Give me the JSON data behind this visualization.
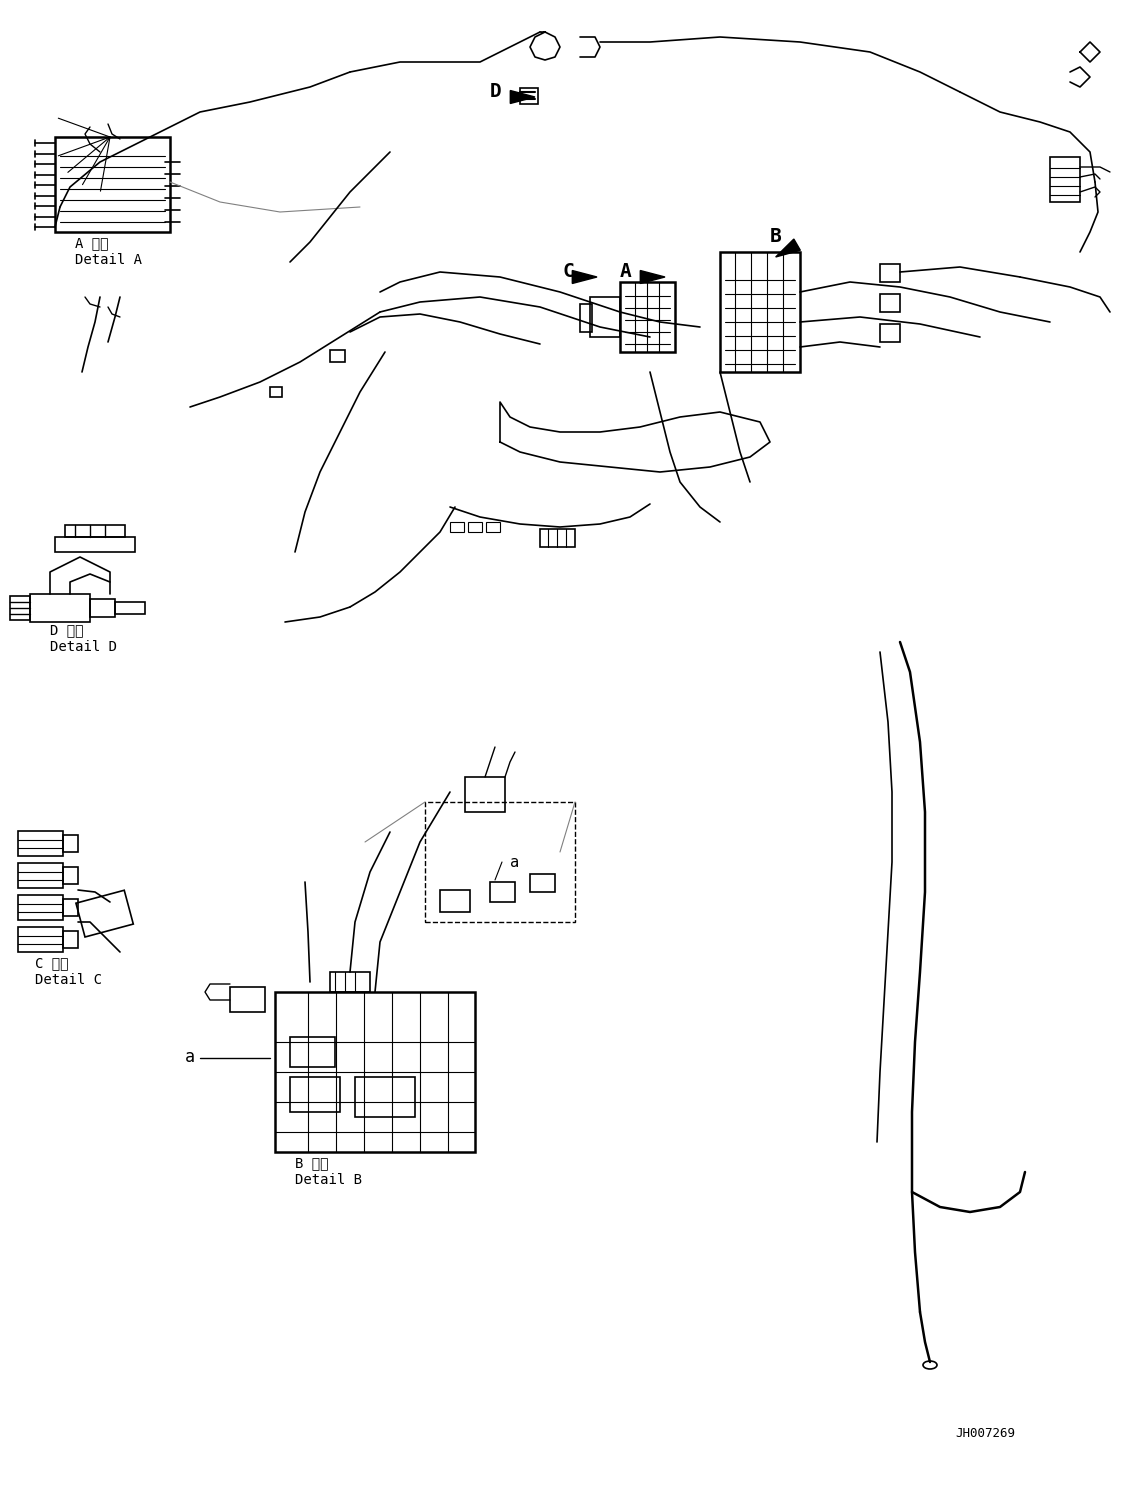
{
  "bg_color": "#ffffff",
  "line_color": "#000000",
  "fig_width": 11.39,
  "fig_height": 14.92,
  "dpi": 100,
  "labels": {
    "detail_a_jp": "A 詳細",
    "detail_a_en": "Detail A",
    "detail_b_jp": "B 詳細",
    "detail_b_en": "Detail B",
    "detail_c_jp": "C 詳細",
    "detail_c_en": "Detail C",
    "detail_d_jp": "D 詳細",
    "detail_d_en": "Detail D",
    "code": "JH007269",
    "label_A": "A",
    "label_B": "B",
    "label_C": "C",
    "label_D": "D",
    "label_a1": "a",
    "label_a2": "a"
  },
  "font_size_label": 11,
  "font_size_detail": 10,
  "font_size_code": 9
}
